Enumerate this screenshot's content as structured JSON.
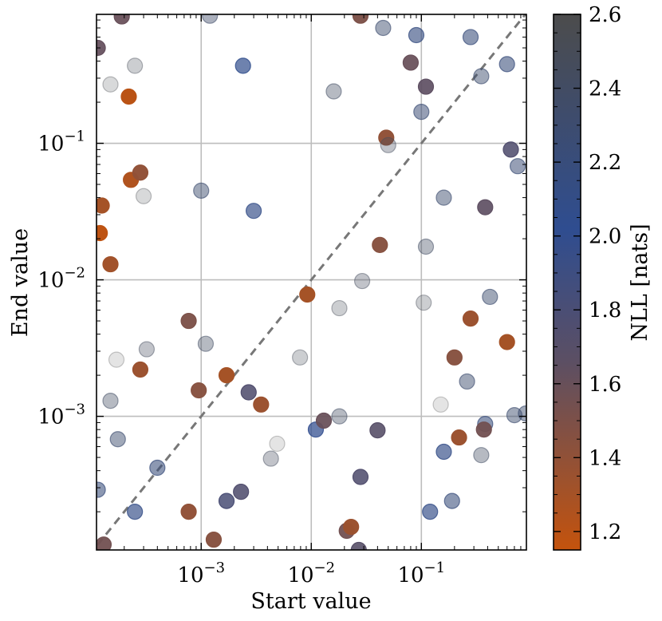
{
  "chart_data": {
    "type": "scatter",
    "title": "",
    "xlabel": "Start value",
    "ylabel": "End value",
    "xscale": "log",
    "yscale": "log",
    "xlim": [
      0.000112,
      0.9
    ],
    "ylim": [
      0.000105,
      0.88
    ],
    "grid": true,
    "xticks": [
      {
        "value": 0.001,
        "base": "10",
        "exp": "−3"
      },
      {
        "value": 0.01,
        "base": "10",
        "exp": "−2"
      },
      {
        "value": 0.1,
        "base": "10",
        "exp": "−1"
      }
    ],
    "yticks": [
      {
        "value": 0.001,
        "base": "10",
        "exp": "−3"
      },
      {
        "value": 0.01,
        "base": "10",
        "exp": "−2"
      },
      {
        "value": 0.1,
        "base": "10",
        "exp": "−1"
      }
    ],
    "reference_line": {
      "label": "y = x",
      "style": "dashed",
      "color": "#777777"
    },
    "colorbar": {
      "label": "NLL [nats]",
      "min": 1.15,
      "max": 2.6,
      "ticks": [
        "1.2",
        "1.4",
        "1.6",
        "1.8",
        "2.0",
        "2.2",
        "2.4",
        "2.6"
      ],
      "colors": [
        "#c4530d",
        "#5c4f63",
        "#2f4d90",
        "#4c4c4c"
      ]
    },
    "points": [
      {
        "x": 0.00019,
        "y": 0.85,
        "nll": 1.6
      },
      {
        "x": 0.000115,
        "y": 0.5,
        "nll": 1.62
      },
      {
        "x": 0.00015,
        "y": 0.27,
        "nll": 2.55
      },
      {
        "x": 0.00025,
        "y": 0.37,
        "nll": 2.5
      },
      {
        "x": 0.0012,
        "y": 0.86,
        "nll": 2.35
      },
      {
        "x": 0.0024,
        "y": 0.37,
        "nll": 2.05
      },
      {
        "x": 0.00022,
        "y": 0.22,
        "nll": 1.2
      },
      {
        "x": 0.000125,
        "y": 0.035,
        "nll": 1.3
      },
      {
        "x": 0.00012,
        "y": 0.022,
        "nll": 1.18
      },
      {
        "x": 0.00015,
        "y": 0.013,
        "nll": 1.32
      },
      {
        "x": 0.00023,
        "y": 0.054,
        "nll": 1.25
      },
      {
        "x": 0.00028,
        "y": 0.061,
        "nll": 1.4
      },
      {
        "x": 0.0003,
        "y": 0.041,
        "nll": 2.55
      },
      {
        "x": 0.001,
        "y": 0.045,
        "nll": 2.3
      },
      {
        "x": 0.003,
        "y": 0.032,
        "nll": 2.1
      },
      {
        "x": 0.028,
        "y": 0.86,
        "nll": 1.5
      },
      {
        "x": 0.045,
        "y": 0.7,
        "nll": 2.3
      },
      {
        "x": 0.09,
        "y": 0.62,
        "nll": 2.15
      },
      {
        "x": 0.28,
        "y": 0.6,
        "nll": 2.2
      },
      {
        "x": 0.6,
        "y": 0.38,
        "nll": 2.2
      },
      {
        "x": 0.35,
        "y": 0.31,
        "nll": 2.3
      },
      {
        "x": 0.08,
        "y": 0.39,
        "nll": 1.6
      },
      {
        "x": 0.11,
        "y": 0.26,
        "nll": 1.65
      },
      {
        "x": 0.1,
        "y": 0.17,
        "nll": 2.25
      },
      {
        "x": 0.016,
        "y": 0.24,
        "nll": 2.4
      },
      {
        "x": 0.048,
        "y": 0.11,
        "nll": 1.4
      },
      {
        "x": 0.05,
        "y": 0.097,
        "nll": 2.45
      },
      {
        "x": 0.65,
        "y": 0.09,
        "nll": 1.75
      },
      {
        "x": 0.75,
        "y": 0.068,
        "nll": 2.25
      },
      {
        "x": 0.16,
        "y": 0.04,
        "nll": 2.3
      },
      {
        "x": 0.38,
        "y": 0.034,
        "nll": 1.65
      },
      {
        "x": 0.042,
        "y": 0.018,
        "nll": 1.45
      },
      {
        "x": 0.11,
        "y": 0.0175,
        "nll": 2.4
      },
      {
        "x": 0.029,
        "y": 0.0098,
        "nll": 2.45
      },
      {
        "x": 0.0092,
        "y": 0.0078,
        "nll": 1.3
      },
      {
        "x": 0.018,
        "y": 0.0062,
        "nll": 2.5
      },
      {
        "x": 0.105,
        "y": 0.0068,
        "nll": 2.5
      },
      {
        "x": 0.42,
        "y": 0.0075,
        "nll": 2.3
      },
      {
        "x": 0.28,
        "y": 0.0052,
        "nll": 1.35
      },
      {
        "x": 0.6,
        "y": 0.0035,
        "nll": 1.3
      },
      {
        "x": 0.2,
        "y": 0.0027,
        "nll": 1.45
      },
      {
        "x": 0.26,
        "y": 0.0018,
        "nll": 2.3
      },
      {
        "x": 0.00077,
        "y": 0.005,
        "nll": 1.5
      },
      {
        "x": 0.0011,
        "y": 0.0034,
        "nll": 2.4
      },
      {
        "x": 0.00032,
        "y": 0.0031,
        "nll": 2.45
      },
      {
        "x": 0.00017,
        "y": 0.0026,
        "nll": 2.6
      },
      {
        "x": 0.00028,
        "y": 0.0022,
        "nll": 1.35
      },
      {
        "x": 0.0079,
        "y": 0.0027,
        "nll": 2.5
      },
      {
        "x": 0.0017,
        "y": 0.002,
        "nll": 1.3
      },
      {
        "x": 0.00095,
        "y": 0.00155,
        "nll": 1.45
      },
      {
        "x": 0.0027,
        "y": 0.0015,
        "nll": 1.75
      },
      {
        "x": 0.0035,
        "y": 0.00122,
        "nll": 1.35
      },
      {
        "x": 0.00015,
        "y": 0.0013,
        "nll": 2.4
      },
      {
        "x": 0.000175,
        "y": 0.00068,
        "nll": 2.3
      },
      {
        "x": 0.0004,
        "y": 0.00042,
        "nll": 2.2
      },
      {
        "x": 0.00013,
        "y": 0.000115,
        "nll": 1.55
      },
      {
        "x": 0.000115,
        "y": 0.00029,
        "nll": 2.2
      },
      {
        "x": 0.00025,
        "y": 0.0002,
        "nll": 2.1
      },
      {
        "x": 0.00077,
        "y": 0.0002,
        "nll": 1.4
      },
      {
        "x": 0.0017,
        "y": 0.00024,
        "nll": 1.8
      },
      {
        "x": 0.0023,
        "y": 0.00028,
        "nll": 1.75
      },
      {
        "x": 0.0013,
        "y": 0.000125,
        "nll": 1.45
      },
      {
        "x": 0.0049,
        "y": 0.00063,
        "nll": 2.6
      },
      {
        "x": 0.0043,
        "y": 0.00049,
        "nll": 2.45
      },
      {
        "x": 0.011,
        "y": 0.0008,
        "nll": 2.0
      },
      {
        "x": 0.013,
        "y": 0.00093,
        "nll": 1.6
      },
      {
        "x": 0.018,
        "y": 0.001,
        "nll": 2.4
      },
      {
        "x": 0.04,
        "y": 0.00079,
        "nll": 1.7
      },
      {
        "x": 0.028,
        "y": 0.00036,
        "nll": 1.75
      },
      {
        "x": 0.021,
        "y": 0.000145,
        "nll": 1.55
      },
      {
        "x": 0.023,
        "y": 0.000155,
        "nll": 1.35
      },
      {
        "x": 0.027,
        "y": 0.000105,
        "nll": 1.7
      },
      {
        "x": 0.12,
        "y": 0.0002,
        "nll": 2.1
      },
      {
        "x": 0.19,
        "y": 0.00024,
        "nll": 2.2
      },
      {
        "x": 0.16,
        "y": 0.00055,
        "nll": 2.1
      },
      {
        "x": 0.22,
        "y": 0.0007,
        "nll": 1.35
      },
      {
        "x": 0.35,
        "y": 0.00052,
        "nll": 2.4
      },
      {
        "x": 0.38,
        "y": 0.00088,
        "nll": 2.2
      },
      {
        "x": 0.37,
        "y": 0.0008,
        "nll": 1.55
      },
      {
        "x": 0.7,
        "y": 0.00102,
        "nll": 2.3
      },
      {
        "x": 0.89,
        "y": 0.00105,
        "nll": 2.3
      },
      {
        "x": 0.15,
        "y": 0.00122,
        "nll": 2.6
      }
    ]
  }
}
